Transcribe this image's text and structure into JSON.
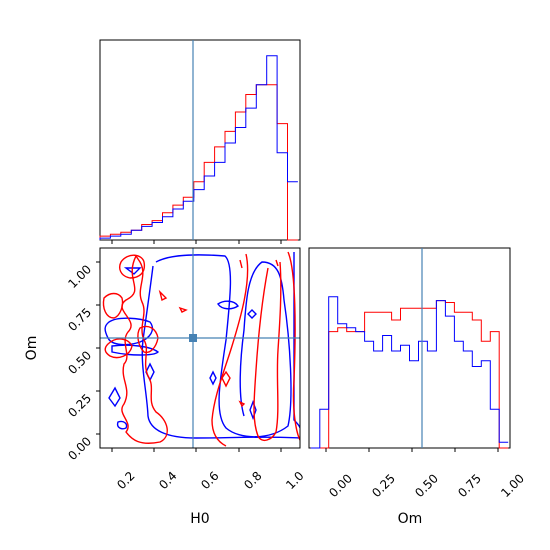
{
  "chart_data": {
    "type": "corner",
    "parameters": [
      "H0",
      "Om"
    ],
    "truth": {
      "H0": 0.58,
      "Om": 0.555
    },
    "colors": {
      "red": "#ff0000",
      "blue": "#0000ff",
      "truth": "#4682b4"
    },
    "grid": false,
    "panels": [
      {
        "name": "H0-marginal",
        "type": "histogram",
        "xlim": [
          0.1,
          1.06
        ],
        "bins_x": [
          0.1,
          0.15,
          0.2,
          0.25,
          0.3,
          0.35,
          0.4,
          0.45,
          0.5,
          0.55,
          0.6,
          0.65,
          0.7,
          0.75,
          0.8,
          0.85,
          0.9,
          0.95,
          1.0,
          1.05
        ],
        "series": [
          {
            "color": "red",
            "values": [
              0.02,
              0.03,
              0.04,
              0.05,
              0.08,
              0.1,
              0.14,
              0.18,
              0.22,
              0.3,
              0.4,
              0.48,
              0.56,
              0.66,
              0.75,
              0.8,
              0.8,
              0.6,
              0.0
            ]
          },
          {
            "color": "blue",
            "values": [
              0.01,
              0.02,
              0.03,
              0.05,
              0.07,
              0.09,
              0.12,
              0.16,
              0.2,
              0.26,
              0.33,
              0.4,
              0.5,
              0.58,
              0.68,
              0.8,
              0.95,
              0.45,
              0.3
            ]
          }
        ]
      },
      {
        "name": "Om-marginal",
        "type": "histogram",
        "xlim": [
          -0.06,
          1.06
        ],
        "xticks": [
          "0.00",
          "0.25",
          "0.50",
          "0.75",
          "1.00"
        ],
        "xlabel": "Om",
        "bins_x": [
          -0.05,
          0.0,
          0.05,
          0.1,
          0.15,
          0.2,
          0.25,
          0.3,
          0.35,
          0.4,
          0.45,
          0.5,
          0.55,
          0.6,
          0.65,
          0.7,
          0.75,
          0.8,
          0.85,
          0.9,
          0.95,
          1.0,
          1.05
        ],
        "series": [
          {
            "color": "red",
            "values": [
              0.0,
              0.0,
              0.6,
              0.62,
              0.6,
              0.6,
              0.7,
              0.7,
              0.7,
              0.66,
              0.72,
              0.72,
              0.72,
              0.72,
              0.76,
              0.75,
              0.7,
              0.7,
              0.66,
              0.55,
              0.6,
              0.0
            ]
          },
          {
            "color": "blue",
            "values": [
              0.0,
              0.2,
              0.78,
              0.64,
              0.62,
              0.6,
              0.55,
              0.5,
              0.58,
              0.5,
              0.53,
              0.45,
              0.55,
              0.5,
              0.76,
              0.68,
              0.55,
              0.5,
              0.42,
              0.45,
              0.2,
              0.03
            ]
          }
        ]
      },
      {
        "name": "H0-Om-2d",
        "type": "contour",
        "xlim": [
          0.1,
          1.06
        ],
        "ylim": [
          -0.06,
          1.1
        ],
        "xticks": [
          "0.2",
          "0.4",
          "0.6",
          "0.8",
          "1.0"
        ],
        "yticks": [
          "0.00",
          "0.25",
          "0.50",
          "0.75",
          "1.00"
        ],
        "xlabel": "H0",
        "ylabel": "Om"
      }
    ]
  }
}
